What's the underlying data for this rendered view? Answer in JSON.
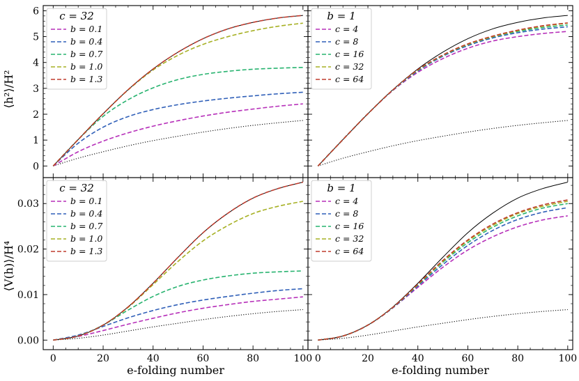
{
  "figure": {
    "xlabel": "e-folding number",
    "ylabel_top": "⟨h²⟩/H²",
    "ylabel_bottom": "⟨V(h)⟩/H⁴"
  },
  "colors": {
    "b=0.1": "#b62fb9",
    "b=0.4": "#2f5fb8",
    "b=0.7": "#27b36f",
    "b=1.0": "#a6b023",
    "b=1.3": "#bf3b2d",
    "c=4": "#b62fb9",
    "c=8": "#2f5fb8",
    "c=16": "#27b36f",
    "c=32": "#a6b023",
    "c=64": "#bf3b2d",
    "reference_solid": "#000000",
    "reference_dotted": "#000000"
  },
  "chart_data": [
    {
      "id": "top-left",
      "type": "line",
      "legend_title": "c = 32",
      "xlim": [
        -4,
        102
      ],
      "ylim": [
        -0.45,
        6.2
      ],
      "xticks": [
        0,
        20,
        40,
        60,
        80,
        100
      ],
      "yticks": [
        0,
        1,
        2,
        3,
        4,
        5,
        6
      ],
      "ytick_labels": [
        "0",
        "1",
        "2",
        "3",
        "4",
        "5",
        "6"
      ],
      "x": [
        0,
        10,
        20,
        30,
        40,
        50,
        60,
        70,
        80,
        90,
        100
      ],
      "reference_solid": [
        0,
        1.02,
        2.02,
        2.95,
        3.75,
        4.4,
        4.92,
        5.3,
        5.55,
        5.72,
        5.82
      ],
      "reference_dotted": [
        0,
        0.3,
        0.55,
        0.78,
        0.98,
        1.15,
        1.31,
        1.45,
        1.57,
        1.67,
        1.76
      ],
      "series": [
        {
          "name": "b = 0.1",
          "color_key": "b=0.1",
          "values": [
            0,
            0.55,
            0.96,
            1.28,
            1.54,
            1.75,
            1.93,
            2.08,
            2.2,
            2.31,
            2.4
          ]
        },
        {
          "name": "b = 0.4",
          "color_key": "b=0.4",
          "values": [
            0,
            0.88,
            1.5,
            1.91,
            2.18,
            2.37,
            2.51,
            2.62,
            2.71,
            2.79,
            2.85
          ]
        },
        {
          "name": "b = 0.7",
          "color_key": "b=0.7",
          "values": [
            0,
            1.02,
            1.92,
            2.56,
            3.02,
            3.34,
            3.54,
            3.66,
            3.74,
            3.78,
            3.81
          ]
        },
        {
          "name": "b = 1.0",
          "color_key": "b=1.0",
          "values": [
            0,
            1.02,
            2.02,
            2.94,
            3.71,
            4.28,
            4.7,
            5.0,
            5.23,
            5.4,
            5.52
          ]
        },
        {
          "name": "b = 1.3",
          "color_key": "b=1.3",
          "values": [
            0,
            1.02,
            2.02,
            2.95,
            3.75,
            4.4,
            4.92,
            5.3,
            5.55,
            5.72,
            5.82
          ]
        }
      ]
    },
    {
      "id": "top-right",
      "type": "line",
      "legend_title": "b = 1",
      "xlim": [
        -4,
        102
      ],
      "ylim": [
        -0.45,
        6.2
      ],
      "xticks": [
        0,
        20,
        40,
        60,
        80,
        100
      ],
      "yticks": [
        0,
        1,
        2,
        3,
        4,
        5,
        6
      ],
      "x": [
        0,
        10,
        20,
        30,
        40,
        50,
        60,
        70,
        80,
        90,
        100
      ],
      "reference_solid": [
        0,
        1.02,
        2.02,
        2.95,
        3.75,
        4.4,
        4.92,
        5.3,
        5.55,
        5.72,
        5.82
      ],
      "reference_dotted": [
        0,
        0.3,
        0.55,
        0.78,
        0.98,
        1.15,
        1.31,
        1.45,
        1.57,
        1.67,
        1.76
      ],
      "series": [
        {
          "name": "c = 4",
          "color_key": "c=4",
          "values": [
            0,
            1.02,
            2.02,
            2.92,
            3.62,
            4.15,
            4.55,
            4.83,
            5.0,
            5.12,
            5.2
          ]
        },
        {
          "name": "c = 8",
          "color_key": "c=8",
          "values": [
            0,
            1.02,
            2.02,
            2.93,
            3.67,
            4.24,
            4.65,
            4.95,
            5.15,
            5.29,
            5.38
          ]
        },
        {
          "name": "c = 16",
          "color_key": "c=16",
          "values": [
            0,
            1.02,
            2.02,
            2.94,
            3.69,
            4.27,
            4.69,
            4.99,
            5.2,
            5.35,
            5.45
          ]
        },
        {
          "name": "c = 32",
          "color_key": "c=32",
          "values": [
            0,
            1.02,
            2.02,
            2.94,
            3.71,
            4.28,
            4.7,
            5.0,
            5.23,
            5.4,
            5.52
          ]
        },
        {
          "name": "c = 64",
          "color_key": "c=64",
          "values": [
            0,
            1.02,
            2.02,
            2.94,
            3.72,
            4.29,
            4.72,
            5.02,
            5.25,
            5.42,
            5.53
          ]
        }
      ]
    },
    {
      "id": "bottom-left",
      "type": "line",
      "legend_title": "c = 32",
      "xlim": [
        -4,
        102
      ],
      "ylim": [
        -0.0021,
        0.0357
      ],
      "xticks": [
        0,
        20,
        40,
        60,
        80,
        100
      ],
      "yticks": [
        0,
        0.01,
        0.02,
        0.03
      ],
      "ytick_labels": [
        "0.00",
        "0.01",
        "0.02",
        "0.03"
      ],
      "x": [
        0,
        10,
        20,
        30,
        40,
        50,
        60,
        70,
        80,
        90,
        100
      ],
      "reference_solid": [
        0,
        0.0009,
        0.0033,
        0.0073,
        0.0125,
        0.0182,
        0.0236,
        0.0279,
        0.0312,
        0.0333,
        0.0347
      ],
      "reference_dotted": [
        0,
        0.0004,
        0.0011,
        0.002,
        0.0029,
        0.0037,
        0.0045,
        0.0052,
        0.0058,
        0.0063,
        0.0067
      ],
      "series": [
        {
          "name": "b = 0.1",
          "color_key": "b=0.1",
          "values": [
            0,
            0.0008,
            0.0021,
            0.0035,
            0.0048,
            0.006,
            0.007,
            0.0078,
            0.0085,
            0.009,
            0.0095
          ]
        },
        {
          "name": "b = 0.4",
          "color_key": "b=0.4",
          "values": [
            0,
            0.0011,
            0.003,
            0.0049,
            0.0065,
            0.0078,
            0.0088,
            0.0096,
            0.0103,
            0.0109,
            0.0113
          ]
        },
        {
          "name": "b = 0.7",
          "color_key": "b=0.7",
          "values": [
            0,
            0.0009,
            0.0033,
            0.0066,
            0.0096,
            0.0118,
            0.0132,
            0.0141,
            0.0147,
            0.015,
            0.0152
          ]
        },
        {
          "name": "b = 1.0",
          "color_key": "b=1.0",
          "values": [
            0,
            0.0009,
            0.0033,
            0.0072,
            0.0122,
            0.0173,
            0.0218,
            0.0252,
            0.0278,
            0.0294,
            0.0305
          ]
        },
        {
          "name": "b = 1.3",
          "color_key": "b=1.3",
          "values": [
            0,
            0.0009,
            0.0033,
            0.0073,
            0.0125,
            0.0182,
            0.0236,
            0.0279,
            0.0312,
            0.0333,
            0.0347
          ]
        }
      ]
    },
    {
      "id": "bottom-right",
      "type": "line",
      "legend_title": "b = 1",
      "xlim": [
        -4,
        102
      ],
      "ylim": [
        -0.0021,
        0.0357
      ],
      "xticks": [
        0,
        20,
        40,
        60,
        80,
        100
      ],
      "yticks": [
        0,
        0.01,
        0.02,
        0.03
      ],
      "x": [
        0,
        10,
        20,
        30,
        40,
        50,
        60,
        70,
        80,
        90,
        100
      ],
      "reference_solid": [
        0,
        0.0009,
        0.0033,
        0.0073,
        0.0125,
        0.0182,
        0.0236,
        0.0279,
        0.0312,
        0.0333,
        0.0347
      ],
      "reference_dotted": [
        0,
        0.0004,
        0.0011,
        0.002,
        0.0029,
        0.0037,
        0.0045,
        0.0052,
        0.0058,
        0.0063,
        0.0067
      ],
      "series": [
        {
          "name": "c = 4",
          "color_key": "c=4",
          "values": [
            0,
            0.0009,
            0.0033,
            0.0071,
            0.0116,
            0.016,
            0.0198,
            0.0227,
            0.0249,
            0.0264,
            0.0273
          ]
        },
        {
          "name": "c = 8",
          "color_key": "c=8",
          "values": [
            0,
            0.0009,
            0.0033,
            0.0071,
            0.0119,
            0.0166,
            0.0208,
            0.0241,
            0.0265,
            0.0281,
            0.0291
          ]
        },
        {
          "name": "c = 16",
          "color_key": "c=16",
          "values": [
            0,
            0.0009,
            0.0033,
            0.0072,
            0.0121,
            0.0171,
            0.0214,
            0.0248,
            0.0273,
            0.029,
            0.03
          ]
        },
        {
          "name": "c = 32",
          "color_key": "c=32",
          "values": [
            0,
            0.0009,
            0.0033,
            0.0072,
            0.0122,
            0.0173,
            0.0218,
            0.0252,
            0.0278,
            0.0294,
            0.0305
          ]
        },
        {
          "name": "c = 64",
          "color_key": "c=64",
          "values": [
            0,
            0.0009,
            0.0033,
            0.0072,
            0.0123,
            0.0175,
            0.022,
            0.0255,
            0.028,
            0.0297,
            0.0308
          ]
        }
      ]
    }
  ]
}
